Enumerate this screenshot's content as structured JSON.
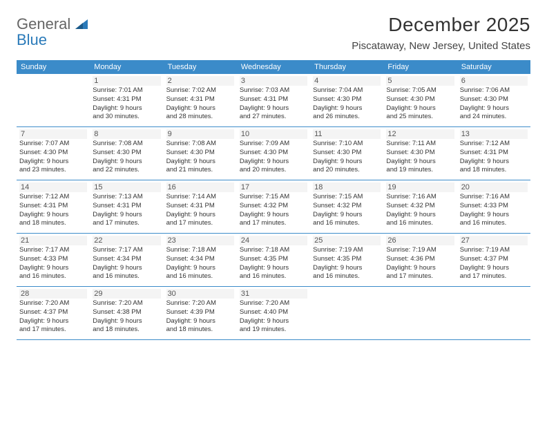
{
  "logo": {
    "word1": "General",
    "word2": "Blue"
  },
  "title": "December 2025",
  "location": "Piscataway, New Jersey, United States",
  "colors": {
    "header_bg": "#3b8bc9",
    "header_text": "#ffffff",
    "divider": "#3b8bc9",
    "daynum_bg": "#f4f4f4",
    "body_text": "#333333",
    "logo_grey": "#666666",
    "logo_blue": "#2a7ab9"
  },
  "day_headers": [
    "Sunday",
    "Monday",
    "Tuesday",
    "Wednesday",
    "Thursday",
    "Friday",
    "Saturday"
  ],
  "weeks": [
    [
      {
        "num": "",
        "lines": [
          "",
          "",
          "",
          ""
        ]
      },
      {
        "num": "1",
        "lines": [
          "Sunrise: 7:01 AM",
          "Sunset: 4:31 PM",
          "Daylight: 9 hours",
          "and 30 minutes."
        ]
      },
      {
        "num": "2",
        "lines": [
          "Sunrise: 7:02 AM",
          "Sunset: 4:31 PM",
          "Daylight: 9 hours",
          "and 28 minutes."
        ]
      },
      {
        "num": "3",
        "lines": [
          "Sunrise: 7:03 AM",
          "Sunset: 4:31 PM",
          "Daylight: 9 hours",
          "and 27 minutes."
        ]
      },
      {
        "num": "4",
        "lines": [
          "Sunrise: 7:04 AM",
          "Sunset: 4:30 PM",
          "Daylight: 9 hours",
          "and 26 minutes."
        ]
      },
      {
        "num": "5",
        "lines": [
          "Sunrise: 7:05 AM",
          "Sunset: 4:30 PM",
          "Daylight: 9 hours",
          "and 25 minutes."
        ]
      },
      {
        "num": "6",
        "lines": [
          "Sunrise: 7:06 AM",
          "Sunset: 4:30 PM",
          "Daylight: 9 hours",
          "and 24 minutes."
        ]
      }
    ],
    [
      {
        "num": "7",
        "lines": [
          "Sunrise: 7:07 AM",
          "Sunset: 4:30 PM",
          "Daylight: 9 hours",
          "and 23 minutes."
        ]
      },
      {
        "num": "8",
        "lines": [
          "Sunrise: 7:08 AM",
          "Sunset: 4:30 PM",
          "Daylight: 9 hours",
          "and 22 minutes."
        ]
      },
      {
        "num": "9",
        "lines": [
          "Sunrise: 7:08 AM",
          "Sunset: 4:30 PM",
          "Daylight: 9 hours",
          "and 21 minutes."
        ]
      },
      {
        "num": "10",
        "lines": [
          "Sunrise: 7:09 AM",
          "Sunset: 4:30 PM",
          "Daylight: 9 hours",
          "and 20 minutes."
        ]
      },
      {
        "num": "11",
        "lines": [
          "Sunrise: 7:10 AM",
          "Sunset: 4:30 PM",
          "Daylight: 9 hours",
          "and 20 minutes."
        ]
      },
      {
        "num": "12",
        "lines": [
          "Sunrise: 7:11 AM",
          "Sunset: 4:30 PM",
          "Daylight: 9 hours",
          "and 19 minutes."
        ]
      },
      {
        "num": "13",
        "lines": [
          "Sunrise: 7:12 AM",
          "Sunset: 4:31 PM",
          "Daylight: 9 hours",
          "and 18 minutes."
        ]
      }
    ],
    [
      {
        "num": "14",
        "lines": [
          "Sunrise: 7:12 AM",
          "Sunset: 4:31 PM",
          "Daylight: 9 hours",
          "and 18 minutes."
        ]
      },
      {
        "num": "15",
        "lines": [
          "Sunrise: 7:13 AM",
          "Sunset: 4:31 PM",
          "Daylight: 9 hours",
          "and 17 minutes."
        ]
      },
      {
        "num": "16",
        "lines": [
          "Sunrise: 7:14 AM",
          "Sunset: 4:31 PM",
          "Daylight: 9 hours",
          "and 17 minutes."
        ]
      },
      {
        "num": "17",
        "lines": [
          "Sunrise: 7:15 AM",
          "Sunset: 4:32 PM",
          "Daylight: 9 hours",
          "and 17 minutes."
        ]
      },
      {
        "num": "18",
        "lines": [
          "Sunrise: 7:15 AM",
          "Sunset: 4:32 PM",
          "Daylight: 9 hours",
          "and 16 minutes."
        ]
      },
      {
        "num": "19",
        "lines": [
          "Sunrise: 7:16 AM",
          "Sunset: 4:32 PM",
          "Daylight: 9 hours",
          "and 16 minutes."
        ]
      },
      {
        "num": "20",
        "lines": [
          "Sunrise: 7:16 AM",
          "Sunset: 4:33 PM",
          "Daylight: 9 hours",
          "and 16 minutes."
        ]
      }
    ],
    [
      {
        "num": "21",
        "lines": [
          "Sunrise: 7:17 AM",
          "Sunset: 4:33 PM",
          "Daylight: 9 hours",
          "and 16 minutes."
        ]
      },
      {
        "num": "22",
        "lines": [
          "Sunrise: 7:17 AM",
          "Sunset: 4:34 PM",
          "Daylight: 9 hours",
          "and 16 minutes."
        ]
      },
      {
        "num": "23",
        "lines": [
          "Sunrise: 7:18 AM",
          "Sunset: 4:34 PM",
          "Daylight: 9 hours",
          "and 16 minutes."
        ]
      },
      {
        "num": "24",
        "lines": [
          "Sunrise: 7:18 AM",
          "Sunset: 4:35 PM",
          "Daylight: 9 hours",
          "and 16 minutes."
        ]
      },
      {
        "num": "25",
        "lines": [
          "Sunrise: 7:19 AM",
          "Sunset: 4:35 PM",
          "Daylight: 9 hours",
          "and 16 minutes."
        ]
      },
      {
        "num": "26",
        "lines": [
          "Sunrise: 7:19 AM",
          "Sunset: 4:36 PM",
          "Daylight: 9 hours",
          "and 17 minutes."
        ]
      },
      {
        "num": "27",
        "lines": [
          "Sunrise: 7:19 AM",
          "Sunset: 4:37 PM",
          "Daylight: 9 hours",
          "and 17 minutes."
        ]
      }
    ],
    [
      {
        "num": "28",
        "lines": [
          "Sunrise: 7:20 AM",
          "Sunset: 4:37 PM",
          "Daylight: 9 hours",
          "and 17 minutes."
        ]
      },
      {
        "num": "29",
        "lines": [
          "Sunrise: 7:20 AM",
          "Sunset: 4:38 PM",
          "Daylight: 9 hours",
          "and 18 minutes."
        ]
      },
      {
        "num": "30",
        "lines": [
          "Sunrise: 7:20 AM",
          "Sunset: 4:39 PM",
          "Daylight: 9 hours",
          "and 18 minutes."
        ]
      },
      {
        "num": "31",
        "lines": [
          "Sunrise: 7:20 AM",
          "Sunset: 4:40 PM",
          "Daylight: 9 hours",
          "and 19 minutes."
        ]
      },
      {
        "num": "",
        "lines": [
          "",
          "",
          "",
          ""
        ]
      },
      {
        "num": "",
        "lines": [
          "",
          "",
          "",
          ""
        ]
      },
      {
        "num": "",
        "lines": [
          "",
          "",
          "",
          ""
        ]
      }
    ]
  ]
}
